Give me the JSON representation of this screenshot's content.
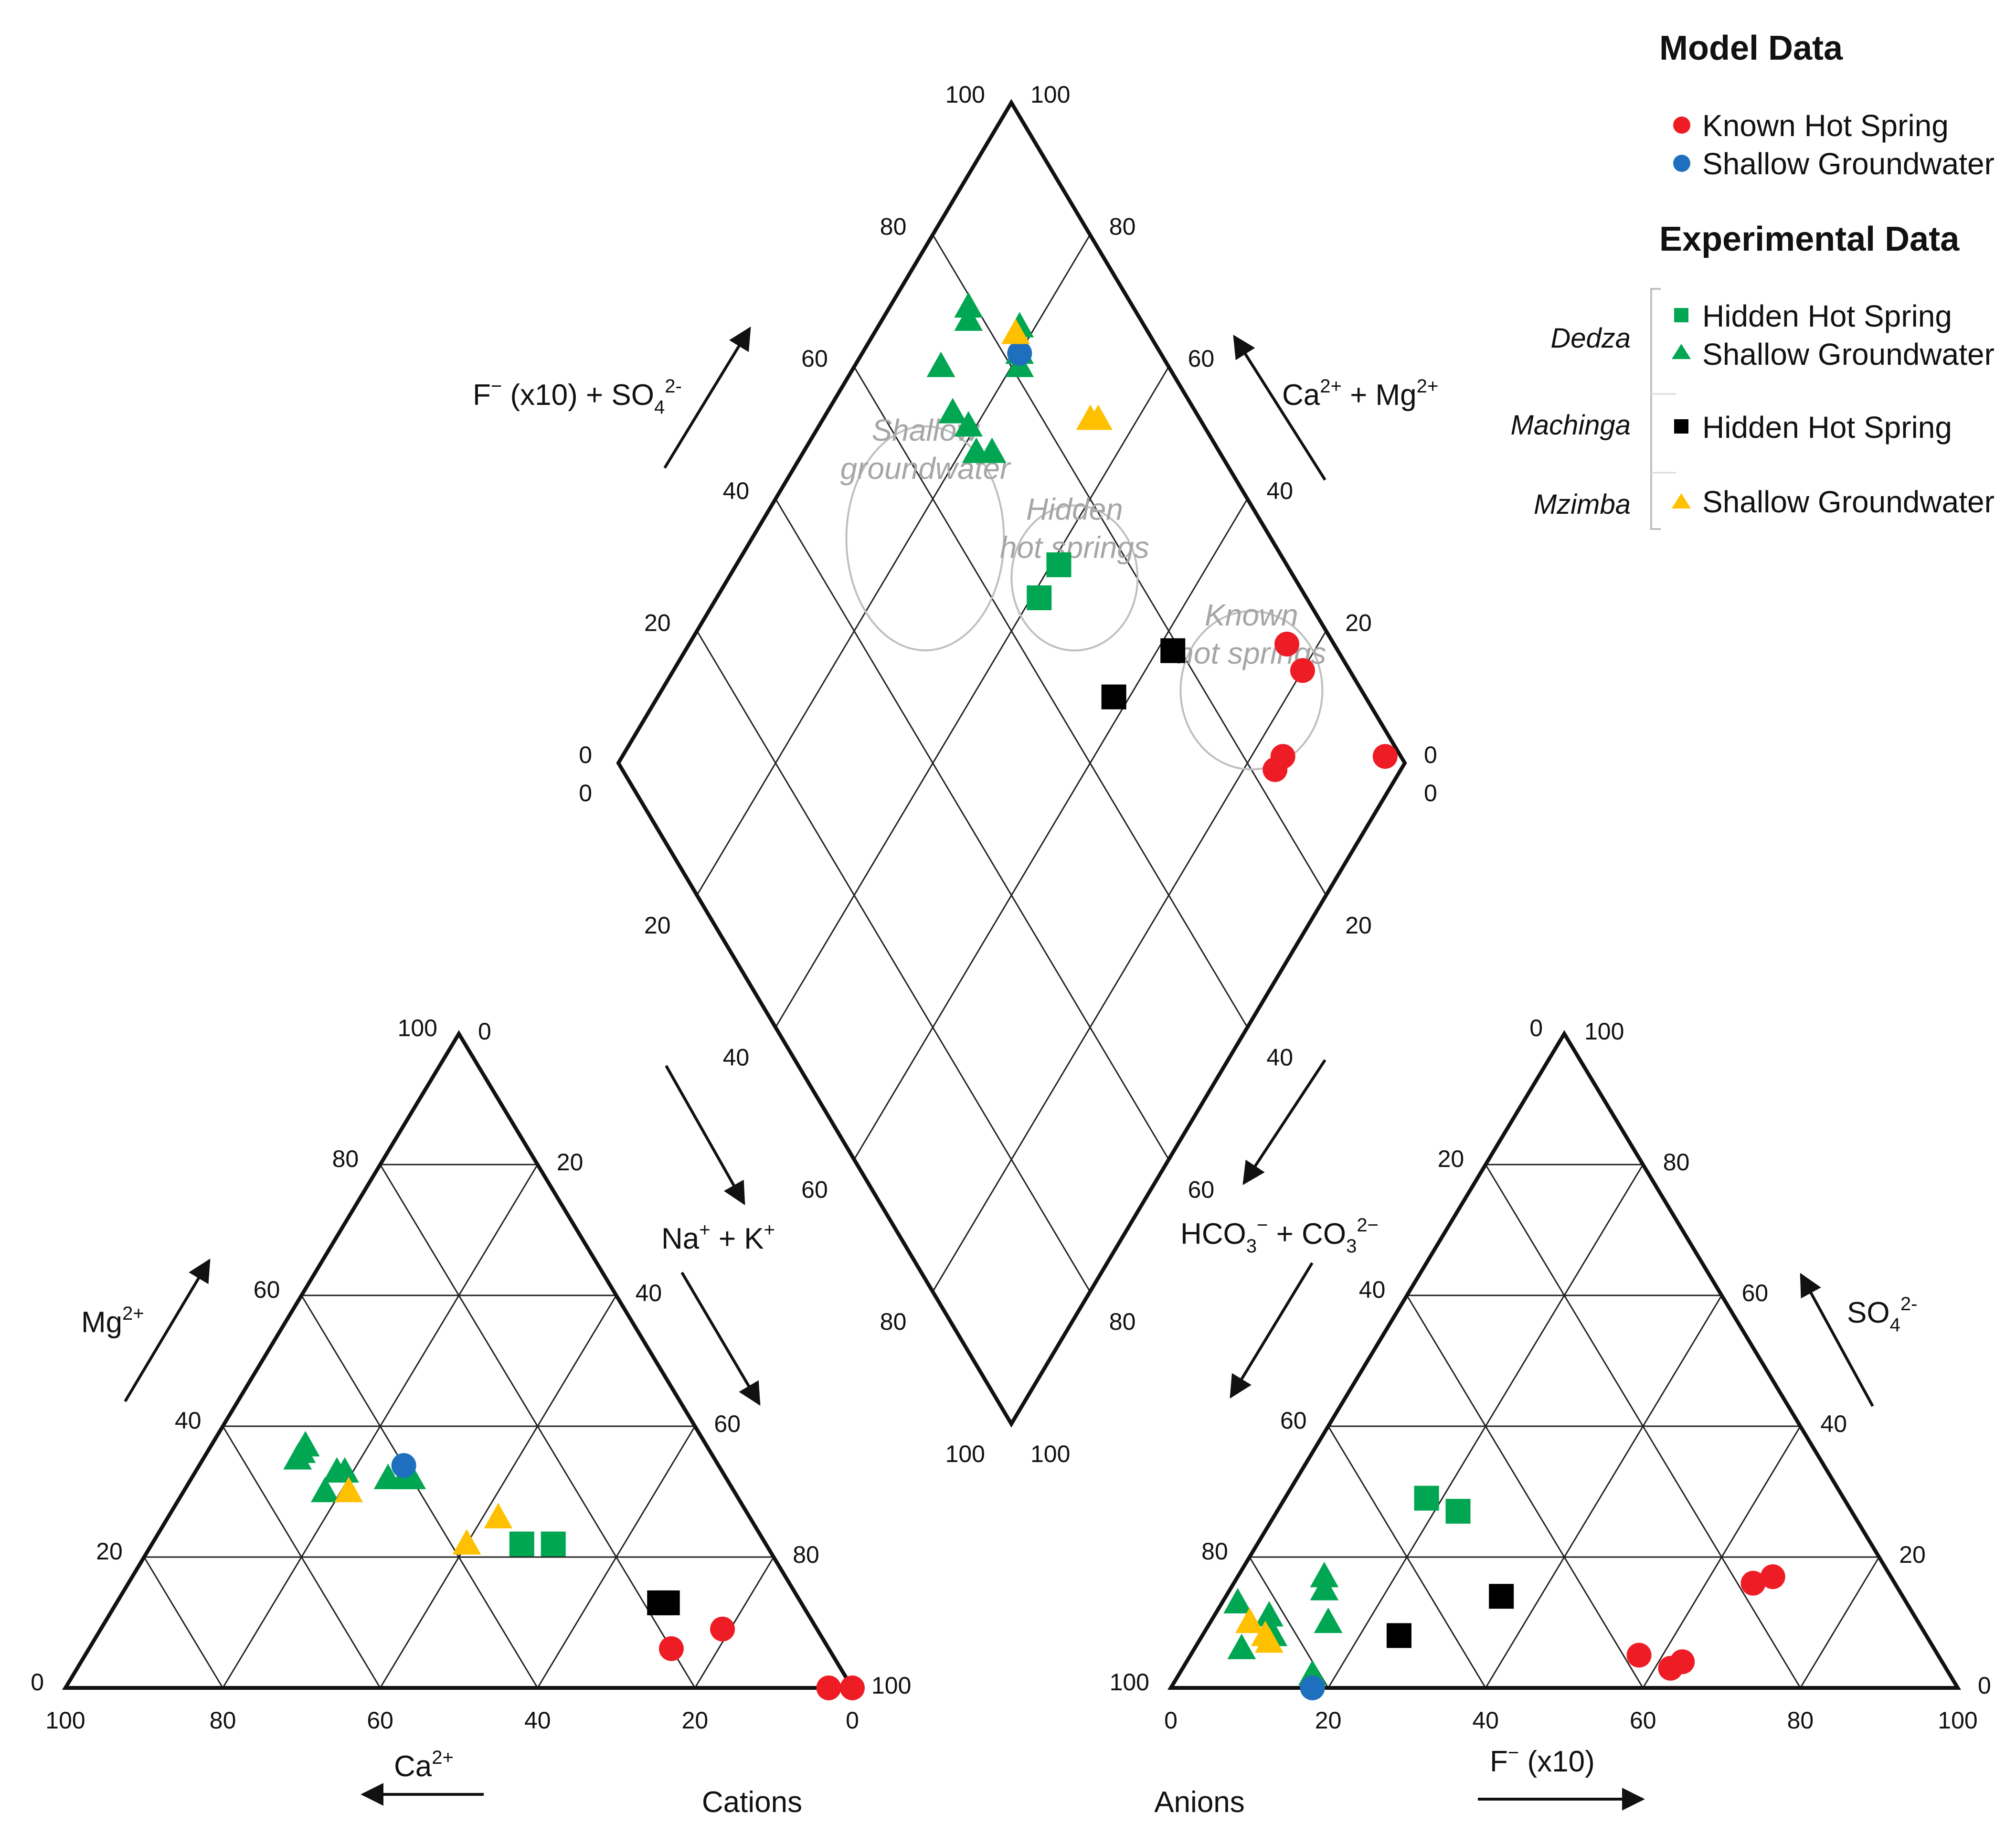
{
  "chart_data": {
    "type": "scatter",
    "subtype": "piper-diagram",
    "colors": {
      "red": "#ee1c24",
      "blue": "#1f6fbf",
      "green": "#00a651",
      "black": "#000000",
      "yellow": "#ffc000",
      "region_outline": "#bfbfbf",
      "region_text": "#a6a6a6"
    },
    "legend": {
      "placement": "top-right",
      "model_header": "Model Data",
      "model_items": [
        {
          "label": "Known Hot Spring",
          "marker": "circle",
          "color": "#ee1c24"
        },
        {
          "label": "Shallow Groundwater",
          "marker": "circle",
          "color": "#1f6fbf"
        }
      ],
      "experimental_header": "Experimental Data",
      "experimental_groups": [
        {
          "group": "Dedza",
          "items": [
            {
              "label": "Hidden Hot Spring",
              "marker": "square",
              "color": "#00a651"
            },
            {
              "label": "Shallow Groundwater",
              "marker": "triangle",
              "color": "#00a651"
            }
          ]
        },
        {
          "group": "Machinga",
          "items": [
            {
              "label": "Hidden Hot Spring",
              "marker": "square",
              "color": "#000000"
            }
          ]
        },
        {
          "group": "Mzimba",
          "items": [
            {
              "label": "Shallow Groundwater",
              "marker": "triangle",
              "color": "#ffc000"
            }
          ]
        }
      ]
    },
    "cation_triangle": {
      "caption": "Cations",
      "axes": {
        "ca": {
          "label": "Ca",
          "sup": "2+"
        },
        "mg": {
          "label": "Mg",
          "sup": "2+"
        },
        "nak": {
          "label": "Na",
          "sup1": "+",
          "mid": " + K",
          "sup2": "+"
        }
      },
      "ticks": [
        "0",
        "20",
        "40",
        "60",
        "80",
        "100"
      ],
      "points": [
        {
          "marker": "triangle",
          "color": "#00a651",
          "ca": 51,
          "mg": 37,
          "nak": 12
        },
        {
          "marker": "triangle",
          "color": "#00a651",
          "ca": 52,
          "mg": 36,
          "nak": 12
        },
        {
          "marker": "triangle",
          "color": "#00a651",
          "ca": 53,
          "mg": 35,
          "nak": 12
        },
        {
          "marker": "triangle",
          "color": "#00a651",
          "ca": 49,
          "mg": 33,
          "nak": 18
        },
        {
          "marker": "triangle",
          "color": "#00a651",
          "ca": 48,
          "mg": 33,
          "nak": 19
        },
        {
          "marker": "triangle",
          "color": "#00a651",
          "ca": 52,
          "mg": 30,
          "nak": 18
        },
        {
          "marker": "triangle",
          "color": "#00a651",
          "ca": 43,
          "mg": 32,
          "nak": 25
        },
        {
          "marker": "triangle",
          "color": "#00a651",
          "ca": 41,
          "mg": 32,
          "nak": 27
        },
        {
          "marker": "triangle",
          "color": "#00a651",
          "ca": 40,
          "mg": 32,
          "nak": 28
        },
        {
          "marker": "circle",
          "color": "#1f6fbf",
          "ca": 40,
          "mg": 34,
          "nak": 26
        },
        {
          "marker": "triangle",
          "color": "#ffc000",
          "ca": 49,
          "mg": 30,
          "nak": 21
        },
        {
          "marker": "triangle",
          "color": "#ffc000",
          "ca": 32,
          "mg": 26,
          "nak": 42
        },
        {
          "marker": "triangle",
          "color": "#ffc000",
          "ca": 38,
          "mg": 22,
          "nak": 40
        },
        {
          "marker": "square",
          "color": "#00a651",
          "ca": 31,
          "mg": 22,
          "nak": 47
        },
        {
          "marker": "square",
          "color": "#00a651",
          "ca": 27,
          "mg": 22,
          "nak": 51
        },
        {
          "marker": "square",
          "color": "#000000",
          "ca": 18,
          "mg": 13,
          "nak": 69
        },
        {
          "marker": "square",
          "color": "#000000",
          "ca": 17,
          "mg": 13,
          "nak": 70
        },
        {
          "marker": "circle",
          "color": "#ee1c24",
          "ca": 12,
          "mg": 9,
          "nak": 79
        },
        {
          "marker": "circle",
          "color": "#ee1c24",
          "ca": 20,
          "mg": 6,
          "nak": 74
        },
        {
          "marker": "circle",
          "color": "#ee1c24",
          "ca": 3,
          "mg": 0,
          "nak": 97
        },
        {
          "marker": "circle",
          "color": "#ee1c24",
          "ca": 0,
          "mg": 0,
          "nak": 100
        }
      ]
    },
    "anion_triangle": {
      "caption": "Anions",
      "axes": {
        "f": {
          "label": "F",
          "sup": "−",
          "suffix": " (x10)"
        },
        "so4": {
          "label": "SO",
          "sub": "4",
          "sup": "2-"
        },
        "hco3": {
          "label": "HCO",
          "sub1": "3",
          "sup1": "−",
          "mid": " + CO",
          "sub2": "3",
          "sup2": "2−"
        }
      },
      "ticks": [
        "0",
        "20",
        "40",
        "60",
        "80",
        "100"
      ],
      "points": [
        {
          "marker": "square",
          "color": "#00a651",
          "f": 18,
          "so4": 29,
          "hco3": 53
        },
        {
          "marker": "square",
          "color": "#00a651",
          "f": 23,
          "so4": 27,
          "hco3": 50
        },
        {
          "marker": "triangle",
          "color": "#00a651",
          "f": 2,
          "so4": 13,
          "hco3": 85
        },
        {
          "marker": "triangle",
          "color": "#00a651",
          "f": 11,
          "so4": 17,
          "hco3": 72
        },
        {
          "marker": "triangle",
          "color": "#00a651",
          "f": 12,
          "so4": 15,
          "hco3": 73
        },
        {
          "marker": "triangle",
          "color": "#00a651",
          "f": 7,
          "so4": 11,
          "hco3": 82
        },
        {
          "marker": "triangle",
          "color": "#00a651",
          "f": 8,
          "so4": 9,
          "hco3": 83
        },
        {
          "marker": "triangle",
          "color": "#00a651",
          "f": 9,
          "so4": 8,
          "hco3": 83
        },
        {
          "marker": "triangle",
          "color": "#00a651",
          "f": 6,
          "so4": 6,
          "hco3": 88
        },
        {
          "marker": "triangle",
          "color": "#00a651",
          "f": 15,
          "so4": 10,
          "hco3": 75
        },
        {
          "marker": "triangle",
          "color": "#00a651",
          "f": 17,
          "so4": 2,
          "hco3": 81
        },
        {
          "marker": "circle",
          "color": "#1f6fbf",
          "f": 18,
          "so4": 0,
          "hco3": 82
        },
        {
          "marker": "triangle",
          "color": "#ffc000",
          "f": 5,
          "so4": 10,
          "hco3": 85
        },
        {
          "marker": "triangle",
          "color": "#ffc000",
          "f": 8,
          "so4": 8,
          "hco3": 84
        },
        {
          "marker": "triangle",
          "color": "#ffc000",
          "f": 9,
          "so4": 7,
          "hco3": 84
        },
        {
          "marker": "square",
          "color": "#000000",
          "f": 35,
          "so4": 14,
          "hco3": 51
        },
        {
          "marker": "square",
          "color": "#000000",
          "f": 25,
          "so4": 8,
          "hco3": 67
        },
        {
          "marker": "circle",
          "color": "#ee1c24",
          "f": 57,
          "so4": 5,
          "hco3": 38
        },
        {
          "marker": "circle",
          "color": "#ee1c24",
          "f": 62,
          "so4": 3,
          "hco3": 35
        },
        {
          "marker": "circle",
          "color": "#ee1c24",
          "f": 63,
          "so4": 4,
          "hco3": 33
        },
        {
          "marker": "circle",
          "color": "#ee1c24",
          "f": 66,
          "so4": 16,
          "hco3": 18
        },
        {
          "marker": "circle",
          "color": "#ee1c24",
          "f": 68,
          "so4": 17,
          "hco3": 15
        }
      ]
    },
    "diamond": {
      "axes": {
        "upper_left": {
          "label": "F",
          "sup": "−",
          "suffix": " (x10) + SO",
          "sub": "4",
          "sup2": "2-"
        },
        "upper_right": {
          "label": "Ca",
          "sup": "2+",
          "mid": " + Mg",
          "sup2": "2+"
        },
        "lower_left": {
          "label": "Na",
          "sup": "+",
          "mid": " + K",
          "sup2": "+"
        },
        "lower_right": {
          "label": "HCO",
          "sub": "3",
          "sup": "−",
          "mid": " + CO",
          "sub2": "3",
          "sup2": "2−"
        }
      },
      "ticks": [
        "0",
        "20",
        "40",
        "60",
        "80",
        "100"
      ],
      "regions": [
        {
          "label_line1": "Shallow",
          "label_line2": "groundwater",
          "center": [
            22,
            44
          ],
          "r": [
            10,
            17
          ]
        },
        {
          "label_line1": "Hidden",
          "label_line2": "hot springs",
          "center": [
            44,
            28
          ],
          "r": [
            8,
            11
          ]
        },
        {
          "label_line1": "Known",
          "label_line2": "hot springs",
          "center": [
            75,
            14
          ],
          "r": [
            9,
            12
          ]
        }
      ],
      "points": [
        {
          "marker": "triangle",
          "color": "#00a651",
          "cations": 11,
          "anions": 29
        },
        {
          "marker": "triangle",
          "color": "#00a651",
          "cations": 16,
          "anions": 31
        },
        {
          "marker": "triangle",
          "color": "#00a651",
          "cations": 19,
          "anions": 30
        },
        {
          "marker": "triangle",
          "color": "#00a651",
          "cations": 22,
          "anions": 31
        },
        {
          "marker": "triangle",
          "color": "#00a651",
          "cations": 24,
          "anions": 29
        },
        {
          "marker": "triangle",
          "color": "#00a651",
          "cations": 11,
          "anions": 22
        },
        {
          "marker": "triangle",
          "color": "#00a651",
          "cations": 10,
          "anions": 21
        },
        {
          "marker": "triangle",
          "color": "#00a651",
          "cations": 18,
          "anions": 16
        },
        {
          "marker": "triangle",
          "color": "#00a651",
          "cations": 20,
          "anions": 18
        },
        {
          "marker": "triangle",
          "color": "#00a651",
          "cations": 21,
          "anions": 19
        },
        {
          "marker": "circle",
          "color": "#1f6fbf",
          "cations": 20,
          "anions": 18
        },
        {
          "marker": "triangle",
          "color": "#ffc000",
          "cations": 18,
          "anions": 17
        },
        {
          "marker": "triangle",
          "color": "#ffc000",
          "cations": 35,
          "anions": 13
        },
        {
          "marker": "triangle",
          "color": "#ffc000",
          "cations": 34,
          "anions": 14
        },
        {
          "marker": "square",
          "color": "#00a651",
          "cations": 41,
          "anions": 29
        },
        {
          "marker": "square",
          "color": "#00a651",
          "cations": 41,
          "anions": 34
        },
        {
          "marker": "square",
          "color": "#000000",
          "cations": 58,
          "anions": 32
        },
        {
          "marker": "square",
          "color": "#000000",
          "cations": 62,
          "anions": 21
        },
        {
          "marker": "circle",
          "color": "#ee1c24",
          "cations": 76,
          "anions": 6
        },
        {
          "marker": "circle",
          "color": "#ee1c24",
          "cations": 80,
          "anions": 6
        },
        {
          "marker": "circle",
          "color": "#ee1c24",
          "cations": 84,
          "anions": 15
        },
        {
          "marker": "circle",
          "color": "#ee1c24",
          "cations": 84,
          "anions": 17
        },
        {
          "marker": "circle",
          "color": "#ee1c24",
          "cations": 97,
          "anions": 2
        }
      ]
    }
  }
}
